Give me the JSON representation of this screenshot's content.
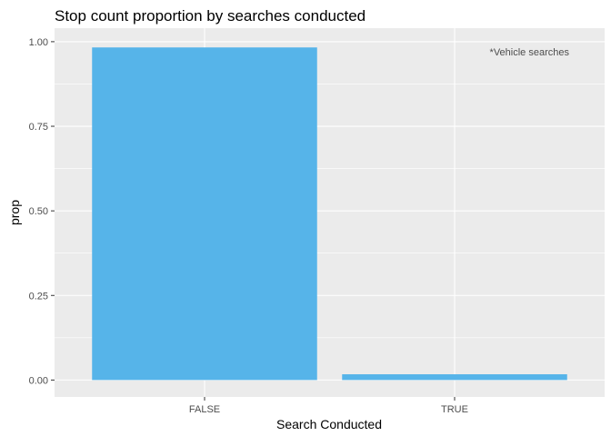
{
  "chart_data": {
    "type": "bar",
    "title": "Stop count proportion by searches conducted",
    "xlabel": "Search Conducted",
    "ylabel": "prop",
    "categories": [
      "FALSE",
      "TRUE"
    ],
    "values": [
      0.983,
      0.017
    ],
    "ylim": [
      -0.05,
      1.04
    ],
    "yticks": [
      "0.00",
      "0.25",
      "0.50",
      "0.75",
      "1.00"
    ],
    "annotation": "*Vehicle searches",
    "grid": true,
    "legend": "none",
    "colors": {
      "bar": "#56b4e9",
      "panel": "#ebebeb",
      "grid": "#ffffff"
    }
  }
}
